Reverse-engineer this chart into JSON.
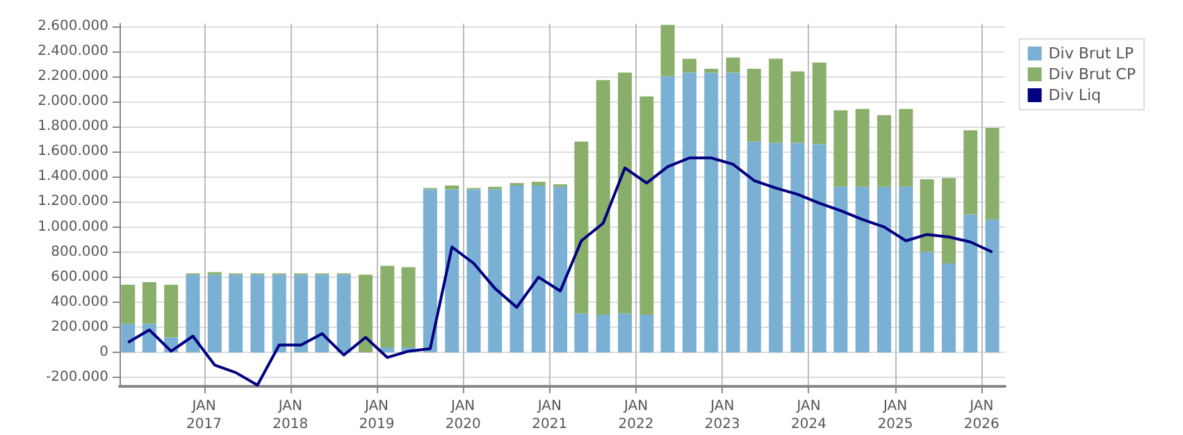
{
  "chart_data": {
    "type": "bar",
    "stacked": true,
    "x": [
      "2016-02-15",
      "2016-05-15",
      "2016-08-15",
      "2016-11-15",
      "2017-02-15",
      "2017-05-15",
      "2017-08-15",
      "2017-11-15",
      "2018-02-15",
      "2018-05-15",
      "2018-08-15",
      "2018-11-15",
      "2019-02-15",
      "2019-05-15",
      "2019-08-15",
      "2019-11-15",
      "2020-02-15",
      "2020-05-15",
      "2020-08-15",
      "2020-11-15",
      "2021-02-15",
      "2021-05-15",
      "2021-08-15",
      "2021-11-15",
      "2022-02-15",
      "2022-05-15",
      "2022-08-15",
      "2022-11-15",
      "2023-02-15",
      "2023-05-15",
      "2023-08-15",
      "2023-11-15",
      "2024-02-15",
      "2024-05-15",
      "2024-08-15",
      "2024-11-15",
      "2025-02-15",
      "2025-05-15",
      "2025-08-15",
      "2025-11-15",
      "2026-02-15"
    ],
    "series": [
      {
        "name": "Div Brut LP",
        "color": "#7ab0d4",
        "values": [
          230000,
          230000,
          120000,
          620000,
          620000,
          620000,
          620000,
          620000,
          620000,
          620000,
          620000,
          0,
          40000,
          40000,
          1300000,
          1300000,
          1300000,
          1300000,
          1330000,
          1330000,
          1320000,
          310000,
          300000,
          310000,
          300000,
          2200000,
          2230000,
          2230000,
          2230000,
          1680000,
          1670000,
          1670000,
          1660000,
          1320000,
          1320000,
          1320000,
          1320000,
          800000,
          710000,
          1100000,
          1060000
        ]
      },
      {
        "name": "Div Brut CP",
        "color": "#8aaf6a",
        "values": [
          310000,
          330000,
          420000,
          10000,
          20000,
          10000,
          10000,
          10000,
          10000,
          10000,
          10000,
          620000,
          650000,
          640000,
          10000,
          30000,
          10000,
          20000,
          20000,
          30000,
          20000,
          1370000,
          1870000,
          1920000,
          1740000,
          410000,
          110000,
          30000,
          120000,
          580000,
          670000,
          570000,
          650000,
          610000,
          620000,
          570000,
          620000,
          580000,
          680000,
          670000,
          730000
        ]
      },
      {
        "name": "Div Liq",
        "type": "line",
        "color": "#000080",
        "values": [
          80000,
          180000,
          10000,
          130000,
          -100000,
          -160000,
          -260000,
          60000,
          60000,
          150000,
          -20000,
          120000,
          -40000,
          10000,
          30000,
          840000,
          710000,
          510000,
          360000,
          600000,
          490000,
          890000,
          1030000,
          1470000,
          1350000,
          1480000,
          1550000,
          1550000,
          1500000,
          1370000,
          1310000,
          1260000,
          1190000,
          1130000,
          1060000,
          1000000,
          890000,
          940000,
          920000,
          880000,
          800000
        ]
      }
    ],
    "xlim": [
      "2016-01-10",
      "2026-04-10"
    ],
    "xticks": [
      {
        "value": "2017-01-01",
        "label": "JAN\n2017"
      },
      {
        "value": "2018-01-01",
        "label": "JAN\n2018"
      },
      {
        "value": "2019-01-01",
        "label": "JAN\n2019"
      },
      {
        "value": "2020-01-01",
        "label": "JAN\n2020"
      },
      {
        "value": "2021-01-01",
        "label": "JAN\n2021"
      },
      {
        "value": "2022-01-01",
        "label": "JAN\n2022"
      },
      {
        "value": "2023-01-01",
        "label": "JAN\n2023"
      },
      {
        "value": "2024-01-01",
        "label": "JAN\n2024"
      },
      {
        "value": "2025-01-01",
        "label": "JAN\n2025"
      },
      {
        "value": "2026-01-01",
        "label": "JAN\n2026"
      }
    ],
    "ylim": [
      -270000,
      2620000
    ],
    "yticks": [
      {
        "value": -200000,
        "label": "-200.000"
      },
      {
        "value": 0,
        "label": "0"
      },
      {
        "value": 200000,
        "label": "200.000"
      },
      {
        "value": 400000,
        "label": "400.000"
      },
      {
        "value": 600000,
        "label": "600.000"
      },
      {
        "value": 800000,
        "label": "800.000"
      },
      {
        "value": 1000000,
        "label": "1.000.000"
      },
      {
        "value": 1200000,
        "label": "1.200.000"
      },
      {
        "value": 1400000,
        "label": "1.400.000"
      },
      {
        "value": 1600000,
        "label": "1.600.000"
      },
      {
        "value": 1800000,
        "label": "1.800.000"
      },
      {
        "value": 2000000,
        "label": "2.000.000"
      },
      {
        "value": 2200000,
        "label": "2.200.000"
      },
      {
        "value": 2400000,
        "label": "2.400.000"
      },
      {
        "value": 2600000,
        "label": "2.600.000"
      }
    ],
    "grid": true,
    "legend": "top right",
    "marker": "none",
    "line_style": "solid"
  }
}
